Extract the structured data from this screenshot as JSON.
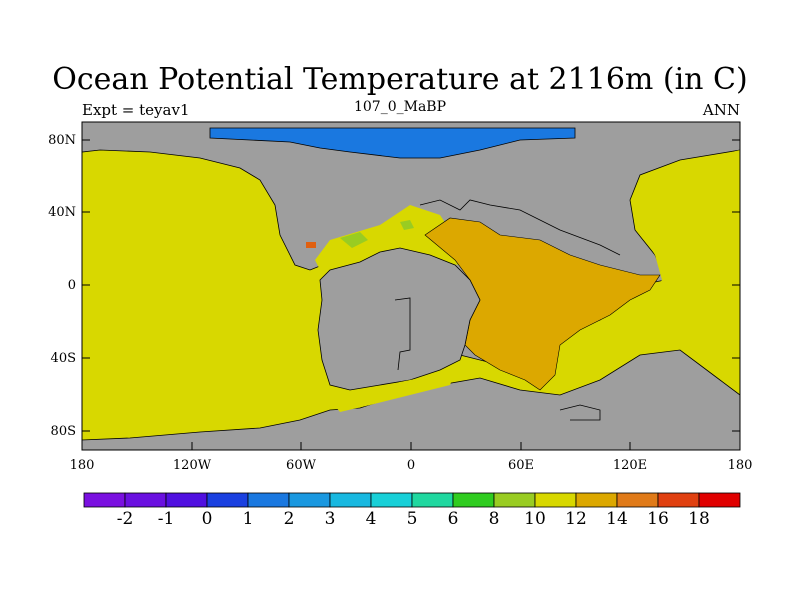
{
  "title": "Ocean Potential Temperature at 2116m (in C)",
  "left_label": "Expt = teyav1",
  "center_label": "107_0_MaBP",
  "right_label": "ANN",
  "map": {
    "lat_ticks": [
      "80N",
      "40N",
      "0",
      "40S",
      "80S"
    ],
    "lon_ticks": [
      "180",
      "120W",
      "60W",
      "0",
      "60E",
      "120E",
      "180"
    ],
    "colors": {
      "land": "#9e9e9e",
      "arctic_cold": "#1a78e0",
      "ocean_12": "#d8d800",
      "ocean_14": "#dca800",
      "ocean_10": "#99cc22",
      "ocean_16": "#e06010"
    }
  },
  "colorbar": {
    "colors": [
      "#7a10e0",
      "#6a10e0",
      "#5010e0",
      "#1a40e0",
      "#1a78e0",
      "#1a98e0",
      "#18b8e0",
      "#18d0d8",
      "#20d8a0",
      "#30cc20",
      "#99cc22",
      "#d8d800",
      "#dca800",
      "#e07a18",
      "#e04010",
      "#e00000"
    ],
    "labels": [
      "-2",
      "-1",
      "0",
      "1",
      "2",
      "3",
      "4",
      "5",
      "6",
      "8",
      "10",
      "12",
      "14",
      "16",
      "18"
    ]
  }
}
